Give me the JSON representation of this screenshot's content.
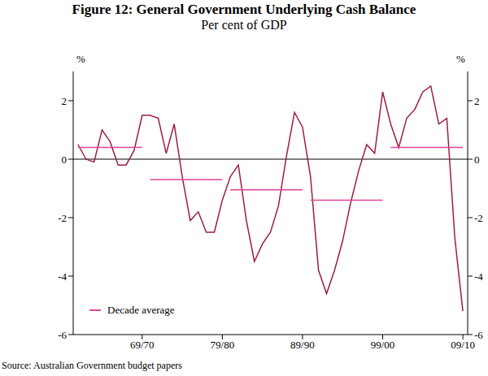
{
  "chart_data": {
    "type": "line",
    "title": "Figure 12: General Government Underlying Cash Balance",
    "subtitle": "Per cent of GDP",
    "y_label": "%",
    "y2_label": "%",
    "source": "Source: Australian Government budget papers",
    "x": [
      1962,
      1963,
      1964,
      1965,
      1966,
      1967,
      1968,
      1969,
      1970,
      1971,
      1972,
      1973,
      1974,
      1975,
      1976,
      1977,
      1978,
      1979,
      1980,
      1981,
      1982,
      1983,
      1984,
      1985,
      1986,
      1987,
      1988,
      1989,
      1990,
      1991,
      1992,
      1993,
      1994,
      1995,
      1996,
      1997,
      1998,
      1999,
      2000,
      2001,
      2002,
      2003,
      2004,
      2005,
      2006,
      2007,
      2008,
      2009,
      2010
    ],
    "series": [
      {
        "name": "General Government Underlying Cash Balance",
        "color": "#9e1f3c",
        "values": [
          0.5,
          0.0,
          -0.1,
          1.0,
          0.6,
          -0.2,
          -0.2,
          0.3,
          1.5,
          1.5,
          1.4,
          0.2,
          1.2,
          -0.6,
          -2.1,
          -1.8,
          -2.5,
          -2.5,
          -1.4,
          -0.6,
          -0.2,
          -2.1,
          -3.5,
          -2.9,
          -2.5,
          -1.6,
          0.1,
          1.6,
          1.1,
          -0.6,
          -3.8,
          -4.6,
          -3.8,
          -2.8,
          -1.5,
          -0.4,
          0.5,
          0.2,
          2.3,
          1.2,
          0.4,
          1.4,
          1.7,
          2.3,
          2.5,
          1.2,
          1.4,
          -2.7,
          -5.2
        ]
      }
    ],
    "decade_average": {
      "name": "Decade average",
      "color": "#e0449b",
      "segments": [
        {
          "x": [
            1962,
            1970
          ],
          "value": 0.4
        },
        {
          "x": [
            1971,
            1980
          ],
          "value": -0.7
        },
        {
          "x": [
            1981,
            1990
          ],
          "value": -1.05
        },
        {
          "x": [
            1991,
            2000
          ],
          "value": -1.4
        },
        {
          "x": [
            2001,
            2010
          ],
          "value": 0.4
        }
      ]
    },
    "xlim": [
      1961.4,
      2010.6
    ],
    "xticks": [
      {
        "value": 1970,
        "label": "69/70"
      },
      {
        "value": 1980,
        "label": "79/80"
      },
      {
        "value": 1990,
        "label": "89/90"
      },
      {
        "value": 2000,
        "label": "99/00"
      },
      {
        "value": 2010,
        "label": "09/10"
      }
    ],
    "ylim": [
      -6,
      3
    ],
    "yticks": [
      -6,
      -4,
      -2,
      0,
      2
    ],
    "y2lim": [
      -6,
      3
    ],
    "y2ticks": [
      -6,
      -4,
      -2,
      0,
      2
    ],
    "legend": "lower left",
    "grid": false
  }
}
